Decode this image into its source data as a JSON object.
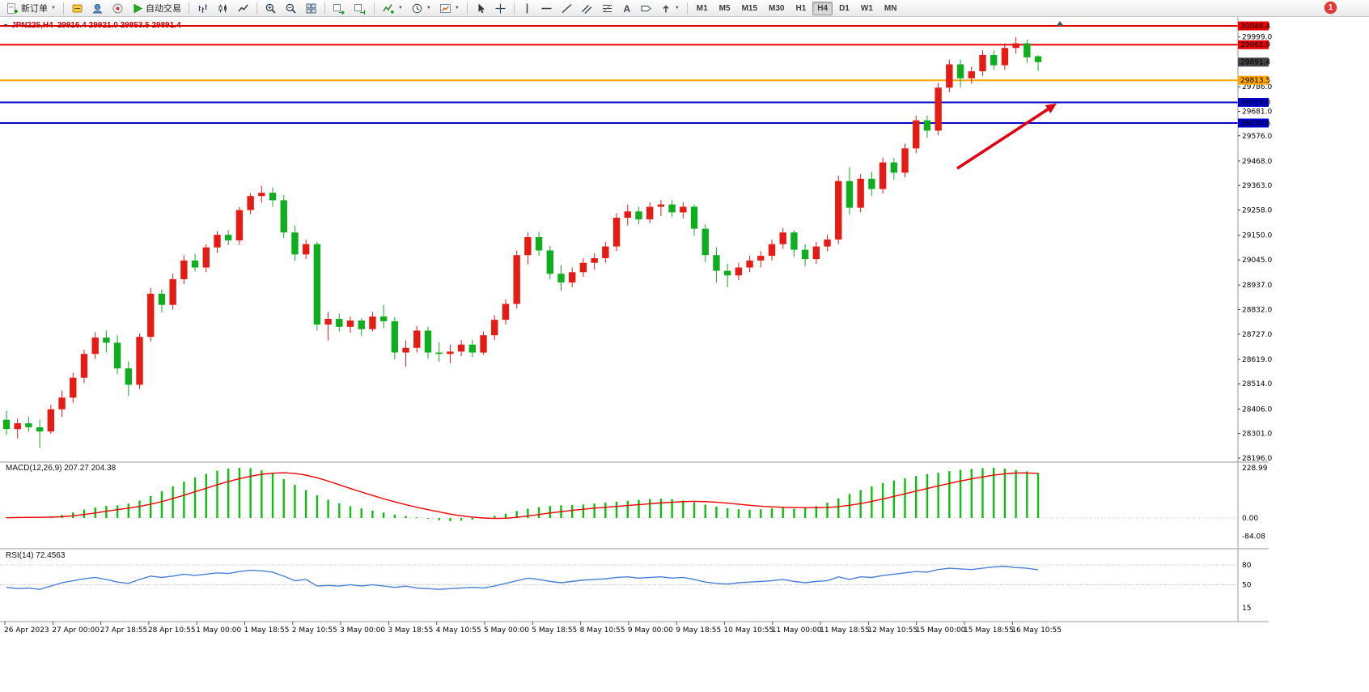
{
  "window": {
    "notification_badge": "1"
  },
  "toolbar": {
    "new_order_label": "新订单",
    "auto_trading_label": "自动交易",
    "timeframes": [
      "M1",
      "M5",
      "M15",
      "M30",
      "H1",
      "H4",
      "D1",
      "W1",
      "MN"
    ],
    "active_timeframe": "H4",
    "icons": [
      "new-order",
      "editor",
      "profile",
      "support",
      "auto-trading-play",
      "ohlc-bars",
      "candlesticks",
      "line-chart",
      "zoom-in",
      "zoom-out",
      "tile-windows",
      "auto-scroll",
      "chart-shift",
      "indicators",
      "periods-clock",
      "templates",
      "cursor",
      "crosshair",
      "vertical-line",
      "horizontal-line",
      "trendline",
      "channel",
      "fibonacci",
      "text",
      "label",
      "arrows"
    ]
  },
  "chart": {
    "title_symbol": "JPN225,H4",
    "title_ohlc": "29916.4 29921.0 29853.5 29891.4",
    "macd_label": "MACD(12,26,9) 207.27 204.38",
    "rsi_label": "RSI(14) 72.4563"
  },
  "chart_data": {
    "type": "candlestick",
    "symbol": "JPN225",
    "timeframe": "H4",
    "last_ohlc": {
      "open": 29916.4,
      "high": 29921.0,
      "low": 29853.5,
      "close": 29891.4
    },
    "current_price": 29891.4,
    "ylim": [
      28150,
      30080
    ],
    "price_axis_ticks": [
      29999.0,
      29786.0,
      29681.0,
      29576.0,
      29468.0,
      29363.0,
      29258.0,
      29150.0,
      29045.0,
      28937.0,
      28832.0,
      28727.0,
      28619.0,
      28514.0,
      28406.0,
      28301.0,
      28196.0
    ],
    "horizontal_lines": [
      {
        "price": 30046.4,
        "color": "#e80000"
      },
      {
        "price": 29965.9,
        "color": "#e80000"
      },
      {
        "price": 29813.5,
        "color": "#ffa500"
      },
      {
        "price": 29719.0,
        "color": "#0000c8"
      },
      {
        "price": 29630.6,
        "color": "#0000c8"
      }
    ],
    "candles": [
      [
        28360,
        28400,
        28295,
        28320
      ],
      [
        28320,
        28365,
        28280,
        28345
      ],
      [
        28345,
        28372,
        28308,
        28328
      ],
      [
        28328,
        28360,
        28240,
        28310
      ],
      [
        28310,
        28425,
        28300,
        28405
      ],
      [
        28405,
        28485,
        28372,
        28455
      ],
      [
        28455,
        28562,
        28432,
        28540
      ],
      [
        28540,
        28660,
        28518,
        28642
      ],
      [
        28642,
        28735,
        28620,
        28712
      ],
      [
        28712,
        28742,
        28648,
        28690
      ],
      [
        28690,
        28722,
        28555,
        28580
      ],
      [
        28580,
        28610,
        28462,
        28510
      ],
      [
        28510,
        28730,
        28492,
        28715
      ],
      [
        28715,
        28925,
        28695,
        28900
      ],
      [
        28900,
        28918,
        28820,
        28852
      ],
      [
        28852,
        28985,
        28832,
        28962
      ],
      [
        28962,
        29065,
        28940,
        29042
      ],
      [
        29042,
        29070,
        28995,
        29012
      ],
      [
        29012,
        29112,
        28992,
        29098
      ],
      [
        29098,
        29168,
        29075,
        29152
      ],
      [
        29152,
        29172,
        29108,
        29128
      ],
      [
        29128,
        29272,
        29108,
        29258
      ],
      [
        29258,
        29330,
        29240,
        29318
      ],
      [
        29318,
        29362,
        29290,
        29332
      ],
      [
        29332,
        29355,
        29272,
        29300
      ],
      [
        29300,
        29322,
        29138,
        29162
      ],
      [
        29162,
        29192,
        29040,
        29068
      ],
      [
        29068,
        29132,
        29048,
        29112
      ],
      [
        29112,
        29122,
        28742,
        28768
      ],
      [
        28768,
        28822,
        28700,
        28792
      ],
      [
        28792,
        28815,
        28738,
        28758
      ],
      [
        28758,
        28802,
        28732,
        28785
      ],
      [
        28785,
        28795,
        28718,
        28748
      ],
      [
        28748,
        28822,
        28738,
        28802
      ],
      [
        28802,
        28852,
        28752,
        28782
      ],
      [
        28782,
        28800,
        28618,
        28648
      ],
      [
        28648,
        28700,
        28588,
        28668
      ],
      [
        28668,
        28762,
        28648,
        28742
      ],
      [
        28742,
        28758,
        28622,
        28648
      ],
      [
        28648,
        28692,
        28608,
        28642
      ],
      [
        28642,
        28682,
        28602,
        28652
      ],
      [
        28652,
        28702,
        28632,
        28682
      ],
      [
        28682,
        28702,
        28628,
        28648
      ],
      [
        28648,
        28738,
        28638,
        28722
      ],
      [
        28722,
        28808,
        28702,
        28788
      ],
      [
        28788,
        28876,
        28768,
        28856
      ],
      [
        28856,
        29085,
        28836,
        29065
      ],
      [
        29065,
        29162,
        29025,
        29142
      ],
      [
        29142,
        29165,
        29062,
        29085
      ],
      [
        29085,
        29105,
        28962,
        28985
      ],
      [
        28985,
        29022,
        28912,
        28948
      ],
      [
        28948,
        29012,
        28928,
        28992
      ],
      [
        28992,
        29052,
        28972,
        29032
      ],
      [
        29032,
        29072,
        29002,
        29052
      ],
      [
        29052,
        29122,
        29032,
        29102
      ],
      [
        29102,
        29245,
        29082,
        29225
      ],
      [
        29225,
        29282,
        29192,
        29252
      ],
      [
        29252,
        29272,
        29198,
        29218
      ],
      [
        29218,
        29292,
        29202,
        29272
      ],
      [
        29272,
        29302,
        29232,
        29282
      ],
      [
        29282,
        29300,
        29228,
        29248
      ],
      [
        29248,
        29292,
        29222,
        29272
      ],
      [
        29272,
        29282,
        29148,
        29178
      ],
      [
        29178,
        29198,
        29035,
        29065
      ],
      [
        29065,
        29098,
        28948,
        28998
      ],
      [
        28998,
        29028,
        28928,
        28978
      ],
      [
        28978,
        29032,
        28958,
        29012
      ],
      [
        29012,
        29062,
        28992,
        29042
      ],
      [
        29042,
        29082,
        29012,
        29062
      ],
      [
        29062,
        29132,
        29042,
        29112
      ],
      [
        29112,
        29182,
        29092,
        29162
      ],
      [
        29162,
        29172,
        29058,
        29088
      ],
      [
        29088,
        29112,
        29018,
        29048
      ],
      [
        29048,
        29122,
        29028,
        29102
      ],
      [
        29102,
        29152,
        29082,
        29132
      ],
      [
        29132,
        29405,
        29112,
        29382
      ],
      [
        29382,
        29442,
        29238,
        29268
      ],
      [
        29268,
        29412,
        29248,
        29392
      ],
      [
        29392,
        29422,
        29318,
        29348
      ],
      [
        29348,
        29482,
        29328,
        29462
      ],
      [
        29462,
        29482,
        29388,
        29418
      ],
      [
        29418,
        29542,
        29398,
        29522
      ],
      [
        29522,
        29662,
        29502,
        29642
      ],
      [
        29642,
        29662,
        29568,
        29598
      ],
      [
        29598,
        29802,
        29578,
        29782
      ],
      [
        29782,
        29902,
        29762,
        29882
      ],
      [
        29882,
        29902,
        29782,
        29822
      ],
      [
        29822,
        29872,
        29798,
        29852
      ],
      [
        29852,
        29942,
        29832,
        29922
      ],
      [
        29922,
        29942,
        29858,
        29878
      ],
      [
        29878,
        29972,
        29858,
        29952
      ],
      [
        29952,
        29999,
        29928,
        29972
      ],
      [
        29972,
        29988,
        29888,
        29912
      ],
      [
        29916.4,
        29921.0,
        29853.5,
        29891.4
      ]
    ],
    "macd": {
      "name": "MACD(12,26,9)",
      "current_values": [
        207.27,
        204.38
      ],
      "axis": [
        228.99,
        0.0,
        -84.08
      ],
      "histogram": [
        3,
        5,
        4,
        2,
        6,
        14,
        25,
        38,
        48,
        55,
        58,
        66,
        80,
        100,
        122,
        145,
        166,
        186,
        202,
        216,
        226,
        230,
        228,
        218,
        202,
        178,
        152,
        128,
        104,
        84,
        67,
        54,
        44,
        34,
        25,
        16,
        9,
        3,
        -4,
        -10,
        -14,
        -12,
        -7,
        2,
        10,
        20,
        32,
        42,
        50,
        55,
        58,
        60,
        62,
        66,
        70,
        75,
        79,
        83,
        87,
        89,
        86,
        80,
        71,
        61,
        52,
        45,
        40,
        38,
        40,
        44,
        46,
        42,
        45,
        55,
        70,
        90,
        110,
        128,
        145,
        160,
        172,
        182,
        192,
        200,
        208,
        214,
        220,
        225,
        228,
        230,
        226,
        220,
        213,
        207
      ],
      "signal": [
        1,
        2,
        3,
        3,
        4,
        6,
        10,
        16,
        23,
        31,
        38,
        45,
        53,
        63,
        75,
        89,
        104,
        120,
        136,
        152,
        167,
        180,
        191,
        200,
        205,
        207,
        204,
        196,
        184,
        169,
        152,
        135,
        119,
        103,
        88,
        74,
        61,
        49,
        38,
        28,
        18,
        10,
        4,
        0,
        -2,
        -1,
        3,
        9,
        16,
        23,
        29,
        35,
        40,
        45,
        49,
        53,
        57,
        61,
        65,
        69,
        72,
        75,
        76,
        75,
        72,
        68,
        63,
        58,
        54,
        51,
        49,
        48,
        47,
        47,
        48,
        52,
        58,
        66,
        76,
        87,
        99,
        111,
        123,
        135,
        147,
        158,
        169,
        179,
        188,
        196,
        202,
        206,
        206,
        204
      ]
    },
    "rsi": {
      "name": "RSI(14)",
      "current_value": 72.4563,
      "levels": [
        80,
        50
      ],
      "axis_labels": [
        80,
        50,
        15
      ],
      "values": [
        46,
        44,
        45,
        43,
        48,
        53,
        56,
        59,
        61,
        58,
        54,
        52,
        58,
        63,
        61,
        63,
        66,
        64,
        66,
        68,
        67,
        70,
        72,
        71,
        69,
        63,
        56,
        58,
        48,
        49,
        48,
        50,
        48,
        50,
        48,
        46,
        48,
        45,
        44,
        43,
        44,
        45,
        46,
        45,
        48,
        52,
        56,
        60,
        58,
        55,
        53,
        55,
        57,
        58,
        59,
        61,
        62,
        60,
        61,
        62,
        60,
        61,
        58,
        54,
        52,
        51,
        53,
        54,
        55,
        56,
        58,
        55,
        53,
        55,
        56,
        62,
        58,
        62,
        61,
        64,
        66,
        68,
        70,
        69,
        73,
        75,
        74,
        73,
        75,
        77,
        78,
        76,
        75,
        72.5
      ]
    },
    "time_axis": [
      "26 Apr 2023",
      "27 Apr 00:00",
      "27 Apr 18:55",
      "28 Apr 10:55",
      "1 May 00:00",
      "1 May 18:55",
      "2 May 10:55",
      "3 May 00:00",
      "3 May 18:55",
      "4 May 10:55",
      "5 May 00:00",
      "5 May 18:55",
      "8 May 10:55",
      "9 May 00:00",
      "9 May 18:55",
      "10 May 10:55",
      "11 May 00:00",
      "11 May 18:55",
      "12 May 10:55",
      "15 May 00:00",
      "15 May 18:55",
      "16 May 10:55"
    ],
    "annotation_arrow": {
      "from": {
        "x": 1183,
        "price": 29436
      },
      "to": {
        "x": 1306,
        "price": 29714
      },
      "color": "#e00010",
      "width": 3.6
    },
    "shift_marker": {
      "x": 1310
    },
    "colors": {
      "bull": "#e41c14",
      "bear": "#0fae1e",
      "macd_hist": "#0cc00c",
      "macd_signal": "#f00000",
      "rsi_line": "#4a7fd6",
      "level_dotted": "#c4c4c4",
      "separator": "#9a9a9a",
      "current_price_bg": "#424242",
      "title": "#c80000"
    }
  }
}
